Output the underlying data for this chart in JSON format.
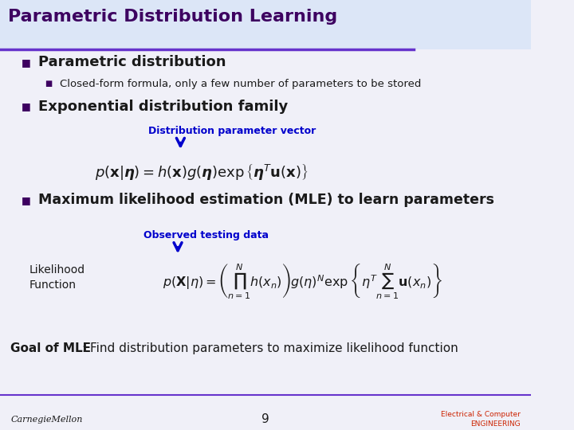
{
  "title": "Parametric Distribution Learning",
  "title_color": "#3d0060",
  "title_fontsize": 16,
  "header_bg_color": "#dce6f7",
  "body_bg_color": "#f0f0f8",
  "bullet1": "Parametric distribution",
  "bullet1_sub": "Closed-form formula, only a few number of parameters to be stored",
  "bullet2": "Exponential distribution family",
  "annotation1": "Distribution parameter vector",
  "annotation1_color": "#0000cc",
  "formula1": "$p(\\mathbf{x}|\\boldsymbol{\\eta}) = h(\\mathbf{x})g(\\boldsymbol{\\eta}) \\exp\\left\\{\\boldsymbol{\\eta}^T \\mathbf{u}(\\mathbf{x})\\right\\}$",
  "bullet3": "Maximum likelihood estimation (MLE) to learn parameters",
  "annotation2": "Observed testing data",
  "annotation2_color": "#0000cc",
  "likelihood_label": "Likelihood\nFunction",
  "formula2": "$p(\\mathbf{X}|\\eta) = \\left(\\prod_{n=1}^{N} h(x_n)\\right) g(\\eta)^N \\exp\\left\\{\\eta^T \\sum_{n=1}^{N} \\mathbf{u}(x_n)\\right\\}$",
  "goal_bold": "Goal of MLE",
  "goal_text": ": Find distribution parameters to maximize likelihood function",
  "footer_text_left": "CarnegieMellon",
  "footer_text_center": "9",
  "footer_text_right": "Electrical & Computer\nENGINEERING",
  "bullet_color": "#3d0060",
  "text_color": "#1a1a1a",
  "separator_color": "#6633cc",
  "arrow_color": "#0000cc"
}
